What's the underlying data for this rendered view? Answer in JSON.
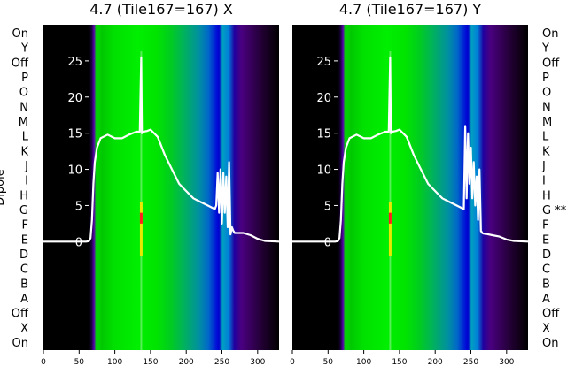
{
  "chart_data": [
    {
      "type": "heatmap",
      "title": "4.7 (Tile167=167) X",
      "ylabel": "Dipole",
      "xlim": [
        0,
        330
      ],
      "ylim": [
        -15,
        30
      ],
      "x_ticks": [
        0,
        50,
        100,
        150,
        200,
        250,
        300
      ],
      "y_ticks": [
        0,
        5,
        10,
        15,
        20,
        25
      ],
      "left_labels": [
        "On",
        "Y",
        "Off",
        "P",
        "O",
        "N",
        "M",
        "L",
        "K",
        "J",
        "I",
        "H",
        "G",
        "F",
        "E",
        "D",
        "C",
        "B",
        "A",
        "Off",
        "X",
        "On"
      ],
      "line": {
        "x": [
          0,
          40,
          60,
          64,
          66,
          68,
          70,
          72,
          75,
          80,
          90,
          100,
          110,
          120,
          130,
          135,
          137,
          138,
          139,
          140,
          145,
          150,
          160,
          170,
          180,
          190,
          200,
          210,
          220,
          230,
          240,
          242,
          244,
          246,
          248,
          250,
          252,
          254,
          256,
          258,
          260,
          262,
          264,
          266,
          268,
          270,
          280,
          290,
          300,
          310,
          330
        ],
        "y": [
          0,
          0,
          0,
          0.1,
          0.5,
          3,
          8,
          11,
          13,
          14.3,
          14.8,
          14.3,
          14.3,
          14.8,
          15.2,
          15.2,
          25.5,
          15,
          15.2,
          15.2,
          15.3,
          15.5,
          14.5,
          12,
          10,
          8,
          7,
          6,
          5.5,
          5,
          4.5,
          5,
          9.5,
          4,
          10,
          2.5,
          9.5,
          4,
          9,
          2,
          11,
          1,
          2,
          1.5,
          1.2,
          1.2,
          1.2,
          0.9,
          0.4,
          0.1,
          0
        ]
      },
      "spikes_x": [
        137
      ]
    },
    {
      "type": "heatmap",
      "title": "4.7 (Tile167=167) Y",
      "xlim": [
        0,
        330
      ],
      "ylim": [
        -15,
        30
      ],
      "x_ticks": [
        0,
        50,
        100,
        150,
        200,
        250,
        300
      ],
      "y_ticks": [
        0,
        5,
        10,
        15,
        20,
        25
      ],
      "right_labels": [
        "On",
        "Y",
        "Off",
        "P",
        "O",
        "N",
        "M",
        "L",
        "K",
        "J",
        "I",
        "H",
        "G **",
        "F",
        "E",
        "D",
        "C",
        "B",
        "A",
        "Off",
        "X",
        "On"
      ],
      "line": {
        "x": [
          0,
          40,
          60,
          64,
          66,
          68,
          70,
          72,
          75,
          80,
          90,
          100,
          110,
          120,
          130,
          135,
          137,
          138,
          139,
          140,
          145,
          150,
          160,
          170,
          180,
          190,
          200,
          210,
          220,
          230,
          240,
          242,
          244,
          246,
          248,
          250,
          252,
          254,
          256,
          258,
          260,
          262,
          264,
          266,
          268,
          270,
          280,
          290,
          300,
          310,
          330
        ],
        "y": [
          0,
          0,
          0,
          0.1,
          0.5,
          3,
          8,
          11,
          13,
          14.3,
          14.8,
          14.3,
          14.3,
          14.8,
          15.2,
          15.2,
          25.5,
          15,
          15.2,
          15.2,
          15.3,
          15.5,
          14.5,
          12,
          10,
          8,
          7,
          6,
          5.5,
          5,
          4.5,
          16,
          6,
          15,
          8,
          13,
          6,
          11,
          5,
          9,
          3,
          10,
          1.5,
          1.2,
          1.1,
          1.1,
          0.9,
          0.7,
          0.3,
          0.1,
          0
        ]
      },
      "spikes_x": [
        137
      ]
    }
  ]
}
